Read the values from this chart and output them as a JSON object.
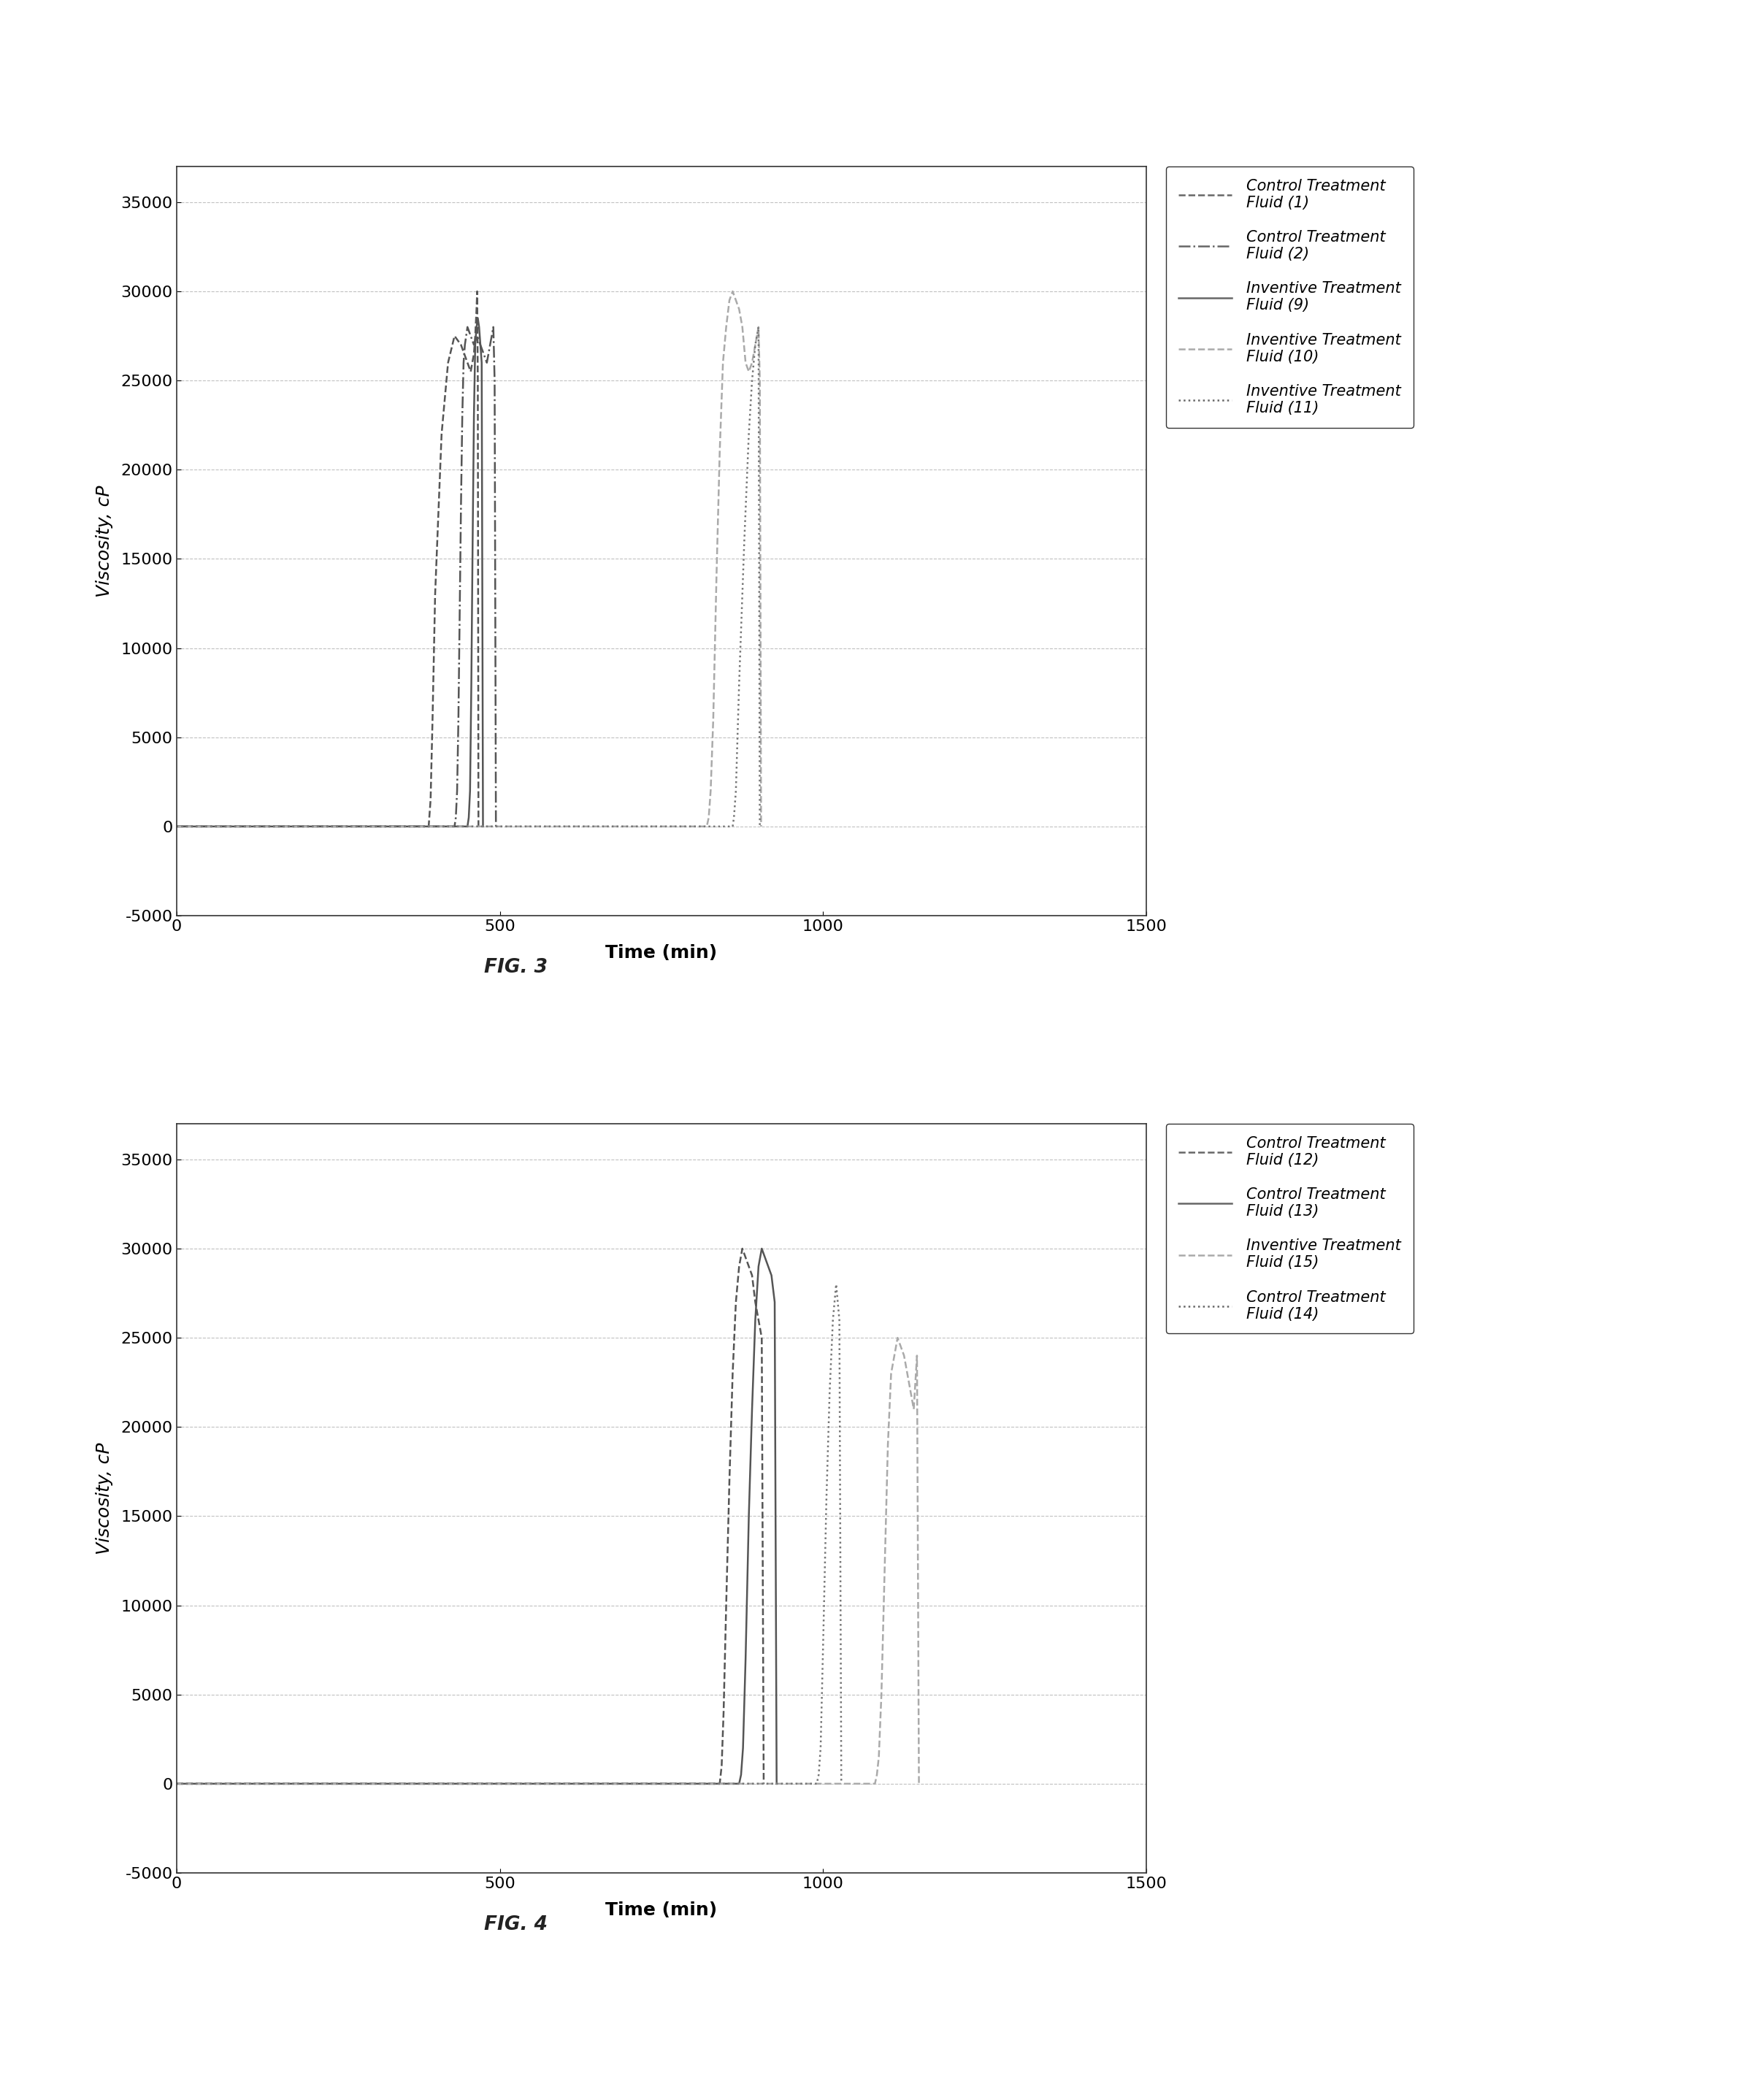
{
  "fig3": {
    "title": "FIG. 3",
    "ylabel": "Viscosity, cP",
    "xlabel": "Time (min)",
    "xlim": [
      0,
      1500
    ],
    "ylim": [
      -5000,
      37000
    ],
    "yticks": [
      -5000,
      0,
      5000,
      10000,
      15000,
      20000,
      25000,
      30000,
      35000
    ],
    "xticks": [
      0,
      500,
      1000,
      1500
    ],
    "legend_entries": [
      {
        "label": "Control Treatment\nFluid (1)",
        "linestyle": "--",
        "color": "#666666"
      },
      {
        "label": "Control Treatment\nFluid (2)",
        "linestyle": "-.",
        "color": "#666666"
      },
      {
        "label": "Inventive Treatment\nFluid (9)",
        "linestyle": "-",
        "color": "#666666"
      },
      {
        "label": "Inventive Treatment\nFluid (10)",
        "linestyle": "--",
        "color": "#aaaaaa"
      },
      {
        "label": "Inventive Treatment\nFluid (11)",
        "linestyle": ":",
        "color": "#666666"
      }
    ],
    "series": [
      {
        "name": "Control Treatment Fluid (1)",
        "linestyle": "--",
        "color": "#555555",
        "x": [
          0,
          390,
          393,
          396,
          400,
          410,
          420,
          430,
          440,
          450,
          455,
          460,
          462,
          464,
          465,
          466,
          467
        ],
        "y": [
          0,
          0,
          1500,
          6000,
          13000,
          22000,
          26000,
          27500,
          27000,
          26000,
          25500,
          26500,
          27500,
          29000,
          30000,
          25000,
          0
        ]
      },
      {
        "name": "Control Treatment Fluid (2)",
        "linestyle": "-.",
        "color": "#555555",
        "x": [
          0,
          430,
          432,
          434,
          436,
          438,
          440,
          442,
          444,
          446,
          448,
          450,
          455,
          460,
          465,
          470,
          475,
          480,
          485,
          490,
          492,
          494
        ],
        "y": [
          0,
          0,
          500,
          2000,
          6000,
          12000,
          18000,
          23000,
          26000,
          27000,
          27500,
          28000,
          27500,
          27000,
          27500,
          27000,
          26500,
          26000,
          27000,
          28000,
          25000,
          0
        ]
      },
      {
        "name": "Inventive Treatment Fluid (9)",
        "linestyle": "-",
        "color": "#555555",
        "x": [
          0,
          450,
          452,
          454,
          456,
          458,
          460,
          462,
          464,
          466,
          468,
          470,
          472,
          474
        ],
        "y": [
          0,
          0,
          500,
          2000,
          8000,
          16000,
          23000,
          27000,
          28000,
          28500,
          28000,
          27000,
          26000,
          0
        ]
      },
      {
        "name": "Inventive Treatment Fluid (10)",
        "linestyle": "--",
        "color": "#aaaaaa",
        "x": [
          0,
          820,
          823,
          826,
          830,
          835,
          840,
          845,
          850,
          855,
          860,
          865,
          870,
          875,
          880,
          885,
          890,
          895,
          900,
          902,
          904
        ],
        "y": [
          0,
          0,
          500,
          2000,
          6000,
          14000,
          21000,
          26000,
          28000,
          29500,
          30000,
          29500,
          29000,
          28000,
          26000,
          25500,
          26000,
          27000,
          28000,
          25000,
          0
        ]
      },
      {
        "name": "Inventive Treatment Fluid (11)",
        "linestyle": ":",
        "color": "#777777",
        "x": [
          0,
          860,
          862,
          865,
          870,
          878,
          885,
          890,
          895,
          900,
          902
        ],
        "y": [
          0,
          0,
          500,
          2000,
          8000,
          16000,
          22000,
          25000,
          27000,
          28000,
          0
        ]
      }
    ]
  },
  "fig4": {
    "title": "FIG. 4",
    "ylabel": "Viscosity, cP",
    "xlabel": "Time (min)",
    "xlim": [
      0,
      1500
    ],
    "ylim": [
      -5000,
      37000
    ],
    "yticks": [
      -5000,
      0,
      5000,
      10000,
      15000,
      20000,
      25000,
      30000,
      35000
    ],
    "xticks": [
      0,
      500,
      1000,
      1500
    ],
    "legend_entries": [
      {
        "label": "Control Treatment\nFluid (12)",
        "linestyle": "--",
        "color": "#666666"
      },
      {
        "label": "Control Treatment\nFluid (13)",
        "linestyle": "-",
        "color": "#666666"
      },
      {
        "label": "Inventive Treatment\nFluid (15)",
        "linestyle": "--",
        "color": "#aaaaaa"
      },
      {
        "label": "Control Treatment\nFluid (14)",
        "linestyle": ":",
        "color": "#666666"
      }
    ],
    "series": [
      {
        "name": "Control Treatment Fluid (12)",
        "linestyle": "--",
        "color": "#555555",
        "x": [
          0,
          840,
          843,
          846,
          850,
          855,
          860,
          865,
          870,
          875,
          880,
          885,
          890,
          895,
          900,
          905,
          908
        ],
        "y": [
          0,
          0,
          1000,
          4000,
          10000,
          17000,
          23000,
          27000,
          29000,
          30000,
          29500,
          29000,
          28500,
          27000,
          26000,
          25000,
          0
        ]
      },
      {
        "name": "Control Treatment Fluid (13)",
        "linestyle": "-",
        "color": "#555555",
        "x": [
          0,
          870,
          873,
          876,
          880,
          885,
          890,
          895,
          900,
          905,
          910,
          915,
          920,
          925,
          928
        ],
        "y": [
          0,
          0,
          500,
          2000,
          7000,
          15000,
          21000,
          26000,
          29000,
          30000,
          29500,
          29000,
          28500,
          27000,
          0
        ]
      },
      {
        "name": "Inventive Treatment Fluid (15)",
        "linestyle": "--",
        "color": "#aaaaaa",
        "x": [
          0,
          1080,
          1083,
          1086,
          1090,
          1095,
          1100,
          1105,
          1110,
          1115,
          1120,
          1125,
          1130,
          1135,
          1140,
          1145,
          1148
        ],
        "y": [
          0,
          0,
          500,
          1500,
          5000,
          12000,
          19000,
          23000,
          24000,
          25000,
          24500,
          24000,
          23000,
          22000,
          21000,
          24000,
          0
        ]
      },
      {
        "name": "Control Treatment Fluid (14)",
        "linestyle": ":",
        "color": "#777777",
        "x": [
          0,
          990,
          993,
          996,
          1000,
          1005,
          1010,
          1015,
          1020,
          1025,
          1028
        ],
        "y": [
          0,
          0,
          500,
          2000,
          8000,
          16000,
          22000,
          26000,
          28000,
          26000,
          0
        ]
      }
    ]
  },
  "bg_color": "#ffffff",
  "text_color": "#333333",
  "grid_color": "#999999",
  "grid_alpha": 0.6,
  "font_size": 18
}
